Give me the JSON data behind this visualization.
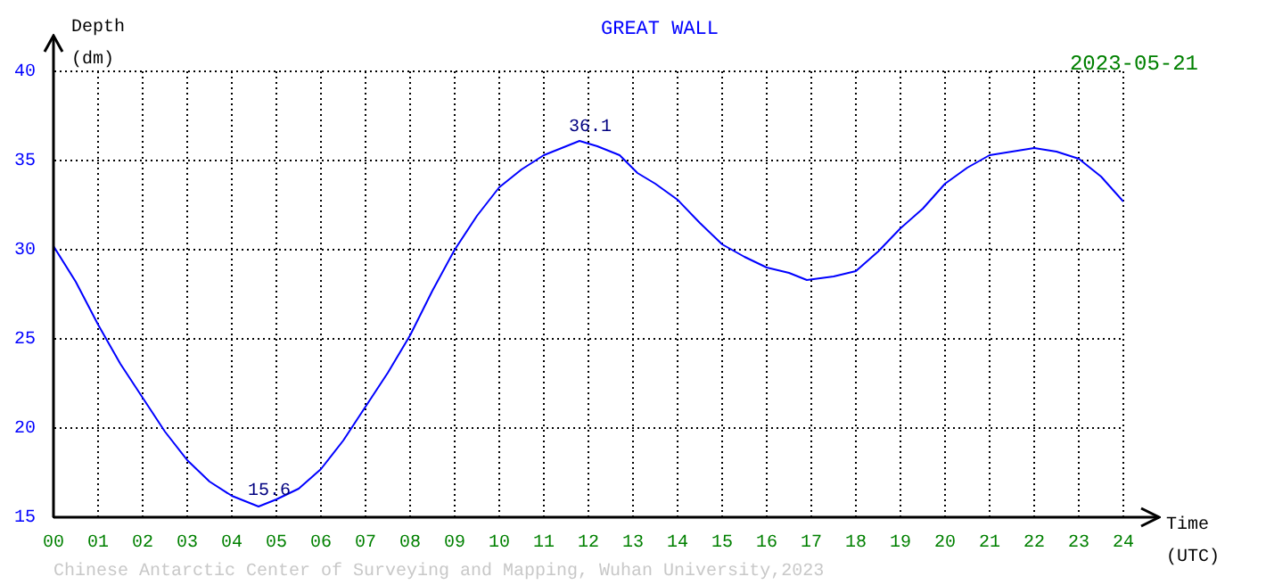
{
  "chart_data": {
    "type": "line",
    "title": "GREAT WALL",
    "xlabel": "Time\n(UTC)",
    "ylabel": "Depth\n(dm)",
    "annotations": [
      {
        "text": "36.1",
        "x": 11.8,
        "y": 36.1
      },
      {
        "text": "15.6",
        "x": 4.6,
        "y": 15.6
      },
      "2023-05-21",
      "Chinese Antarctic Center of Surveying and Mapping, Wuhan University,2023"
    ],
    "x": [
      0,
      0.5,
      1,
      1.5,
      2,
      2.5,
      3,
      3.5,
      4,
      4.5,
      4.6,
      5,
      5.5,
      6,
      6.5,
      7,
      7.5,
      8,
      8.5,
      9,
      9.5,
      10,
      10.5,
      11,
      11.5,
      11.8,
      12.2,
      12.7,
      13.1,
      13.5,
      14,
      14.5,
      15,
      15.5,
      16,
      16.5,
      16.9,
      17.5,
      18,
      18.5,
      19,
      19.5,
      20,
      20.5,
      21,
      21.5,
      22,
      22.5,
      23,
      23.5,
      24
    ],
    "series": [
      {
        "color": "#0000ff",
        "values": [
          30.2,
          28.2,
          25.8,
          23.6,
          21.7,
          19.8,
          18.2,
          17.0,
          16.2,
          15.7,
          15.6,
          16.0,
          16.6,
          17.7,
          19.3,
          21.2,
          23.1,
          25.2,
          27.7,
          30.0,
          31.9,
          33.5,
          34.5,
          35.3,
          35.8,
          36.1,
          35.8,
          35.3,
          34.3,
          33.7,
          32.8,
          31.5,
          30.3,
          29.6,
          29.0,
          28.7,
          28.3,
          28.5,
          28.8,
          29.9,
          31.2,
          32.3,
          33.7,
          34.6,
          35.3,
          35.5,
          35.7,
          35.5,
          35.1,
          34.1,
          32.7
        ]
      }
    ],
    "xlim": [
      0,
      24
    ],
    "xticks": [
      {
        "value": 0,
        "label": "00"
      },
      {
        "value": 1,
        "label": "01"
      },
      {
        "value": 2,
        "label": "02"
      },
      {
        "value": 3,
        "label": "03"
      },
      {
        "value": 4,
        "label": "04"
      },
      {
        "value": 5,
        "label": "05"
      },
      {
        "value": 6,
        "label": "06"
      },
      {
        "value": 7,
        "label": "07"
      },
      {
        "value": 8,
        "label": "08"
      },
      {
        "value": 9,
        "label": "09"
      },
      10,
      11,
      12,
      13,
      14,
      15,
      16,
      17,
      18,
      19,
      20,
      21,
      22,
      23,
      24
    ],
    "ylim": [
      15,
      40
    ],
    "yticks": [
      15,
      20,
      25,
      30,
      35,
      40
    ],
    "grid": true,
    "legend": false,
    "marker": "none",
    "line_style": "solid"
  }
}
